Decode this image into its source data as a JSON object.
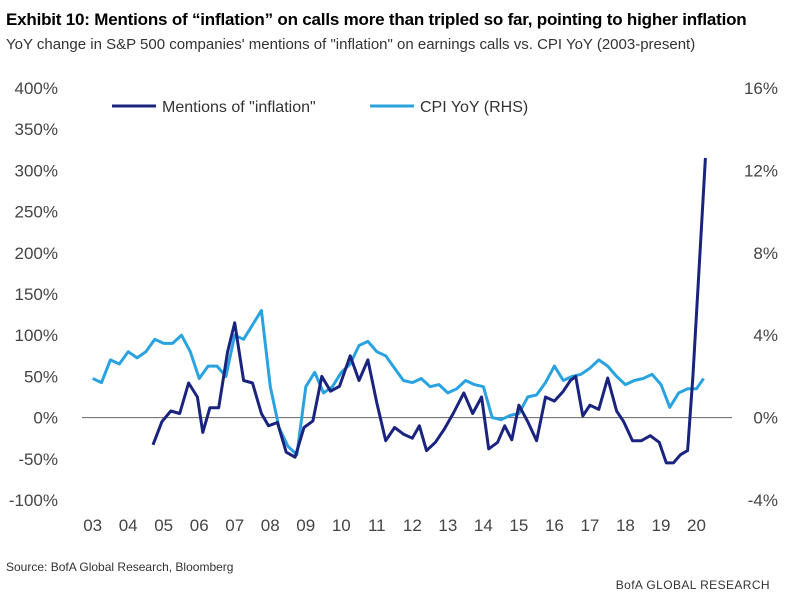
{
  "header": {
    "title": "Exhibit 10: Mentions of “inflation” on calls more than tripled so far, pointing to higher inflation",
    "subtitle": "YoY change in S&P 500 companies' mentions of \"inflation\" on earnings calls vs. CPI YoY (2003-present)"
  },
  "footer": {
    "source": "Source: BofA Global Research, Bloomberg",
    "brand": "BofA GLOBAL RESEARCH"
  },
  "colors": {
    "mentions": "#1a237e",
    "cpi": "#29a3e0",
    "axis": "#666666"
  },
  "chart_data": {
    "type": "line",
    "x_tick_labels": [
      "03",
      "04",
      "05",
      "06",
      "07",
      "08",
      "09",
      "10",
      "11",
      "12",
      "13",
      "14",
      "15",
      "16",
      "17",
      "18",
      "19",
      "20"
    ],
    "x_tick_years": [
      2003,
      2004,
      2005,
      2006,
      2007,
      2008,
      2009,
      2010,
      2011,
      2012,
      2013,
      2014,
      2015,
      2016,
      2017,
      2018,
      2019,
      2020
    ],
    "xlim": [
      2002.7,
      2021.0
    ],
    "y_left_ticks": [
      "400%",
      "350%",
      "300%",
      "250%",
      "200%",
      "150%",
      "100%",
      "50%",
      "0%",
      "-50%",
      "-100%"
    ],
    "y_left_lim": [
      -100,
      400
    ],
    "y_right_ticks": [
      "16%",
      "12%",
      "8%",
      "4%",
      "0%",
      "-4%"
    ],
    "y_right_lim": [
      -4,
      16
    ],
    "legend": {
      "position": "top-left"
    },
    "series": [
      {
        "name": "Mentions of \"inflation\"",
        "axis": "left",
        "points": [
          [
            2004.7,
            -33
          ],
          [
            2004.95,
            -5
          ],
          [
            2005.2,
            8
          ],
          [
            2005.45,
            5
          ],
          [
            2005.7,
            42
          ],
          [
            2005.95,
            25
          ],
          [
            2006.1,
            -18
          ],
          [
            2006.3,
            12
          ],
          [
            2006.55,
            12
          ],
          [
            2006.8,
            80
          ],
          [
            2007.0,
            115
          ],
          [
            2007.25,
            45
          ],
          [
            2007.5,
            42
          ],
          [
            2007.75,
            5
          ],
          [
            2007.95,
            -10
          ],
          [
            2008.2,
            -6
          ],
          [
            2008.45,
            -42
          ],
          [
            2008.7,
            -48
          ],
          [
            2008.95,
            -12
          ],
          [
            2009.2,
            -4
          ],
          [
            2009.45,
            50
          ],
          [
            2009.7,
            32
          ],
          [
            2009.95,
            38
          ],
          [
            2010.25,
            75
          ],
          [
            2010.5,
            45
          ],
          [
            2010.75,
            70
          ],
          [
            2011.0,
            18
          ],
          [
            2011.25,
            -28
          ],
          [
            2011.5,
            -12
          ],
          [
            2011.75,
            -20
          ],
          [
            2012.0,
            -25
          ],
          [
            2012.2,
            -10
          ],
          [
            2012.4,
            -40
          ],
          [
            2012.65,
            -30
          ],
          [
            2012.9,
            -14
          ],
          [
            2013.15,
            5
          ],
          [
            2013.45,
            30
          ],
          [
            2013.7,
            5
          ],
          [
            2013.95,
            25
          ],
          [
            2014.15,
            -38
          ],
          [
            2014.4,
            -30
          ],
          [
            2014.6,
            -10
          ],
          [
            2014.8,
            -27
          ],
          [
            2015.0,
            15
          ],
          [
            2015.25,
            -5
          ],
          [
            2015.5,
            -28
          ],
          [
            2015.75,
            25
          ],
          [
            2016.0,
            20
          ],
          [
            2016.25,
            32
          ],
          [
            2016.45,
            45
          ],
          [
            2016.6,
            50
          ],
          [
            2016.8,
            2
          ],
          [
            2017.0,
            15
          ],
          [
            2017.25,
            10
          ],
          [
            2017.5,
            48
          ],
          [
            2017.75,
            8
          ],
          [
            2017.95,
            -5
          ],
          [
            2018.2,
            -28
          ],
          [
            2018.45,
            -28
          ],
          [
            2018.7,
            -22
          ],
          [
            2018.95,
            -30
          ],
          [
            2019.15,
            -55
          ],
          [
            2019.35,
            -55
          ],
          [
            2019.55,
            -45
          ],
          [
            2019.75,
            -40
          ],
          [
            2019.9,
            50
          ],
          [
            2020.1,
            200
          ],
          [
            2020.25,
            315
          ]
        ]
      },
      {
        "name": "CPI YoY (RHS)",
        "axis": "right",
        "points": [
          [
            2003.0,
            1.9
          ],
          [
            2003.25,
            1.7
          ],
          [
            2003.5,
            2.8
          ],
          [
            2003.75,
            2.6
          ],
          [
            2004.0,
            3.2
          ],
          [
            2004.25,
            2.9
          ],
          [
            2004.5,
            3.2
          ],
          [
            2004.75,
            3.8
          ],
          [
            2005.0,
            3.6
          ],
          [
            2005.25,
            3.6
          ],
          [
            2005.5,
            4.0
          ],
          [
            2005.75,
            3.2
          ],
          [
            2006.0,
            1.9
          ],
          [
            2006.25,
            2.5
          ],
          [
            2006.5,
            2.5
          ],
          [
            2006.75,
            2.0
          ],
          [
            2007.0,
            4.0
          ],
          [
            2007.25,
            3.8
          ],
          [
            2007.5,
            4.5
          ],
          [
            2007.75,
            5.2
          ],
          [
            2008.0,
            1.5
          ],
          [
            2008.25,
            -0.5
          ],
          [
            2008.5,
            -1.4
          ],
          [
            2008.75,
            -1.8
          ],
          [
            2009.0,
            1.5
          ],
          [
            2009.25,
            2.2
          ],
          [
            2009.5,
            1.2
          ],
          [
            2009.75,
            1.5
          ],
          [
            2010.0,
            2.2
          ],
          [
            2010.25,
            2.6
          ],
          [
            2010.5,
            3.5
          ],
          [
            2010.75,
            3.7
          ],
          [
            2011.0,
            3.2
          ],
          [
            2011.25,
            3.0
          ],
          [
            2011.5,
            2.4
          ],
          [
            2011.75,
            1.8
          ],
          [
            2012.0,
            1.7
          ],
          [
            2012.25,
            1.9
          ],
          [
            2012.5,
            1.5
          ],
          [
            2012.75,
            1.6
          ],
          [
            2013.0,
            1.2
          ],
          [
            2013.25,
            1.4
          ],
          [
            2013.5,
            1.8
          ],
          [
            2013.75,
            1.6
          ],
          [
            2014.0,
            1.5
          ],
          [
            2014.25,
            0.0
          ],
          [
            2014.5,
            -0.1
          ],
          [
            2014.75,
            0.1
          ],
          [
            2015.0,
            0.2
          ],
          [
            2015.25,
            1.0
          ],
          [
            2015.5,
            1.1
          ],
          [
            2015.75,
            1.7
          ],
          [
            2016.0,
            2.5
          ],
          [
            2016.25,
            1.8
          ],
          [
            2016.5,
            2.0
          ],
          [
            2016.75,
            2.1
          ],
          [
            2017.0,
            2.4
          ],
          [
            2017.25,
            2.8
          ],
          [
            2017.5,
            2.5
          ],
          [
            2017.75,
            2.0
          ],
          [
            2018.0,
            1.6
          ],
          [
            2018.25,
            1.8
          ],
          [
            2018.5,
            1.9
          ],
          [
            2018.75,
            2.1
          ],
          [
            2019.0,
            1.6
          ],
          [
            2019.25,
            0.5
          ],
          [
            2019.5,
            1.2
          ],
          [
            2019.75,
            1.4
          ],
          [
            2020.0,
            1.4
          ],
          [
            2020.2,
            1.9
          ]
        ]
      }
    ]
  }
}
